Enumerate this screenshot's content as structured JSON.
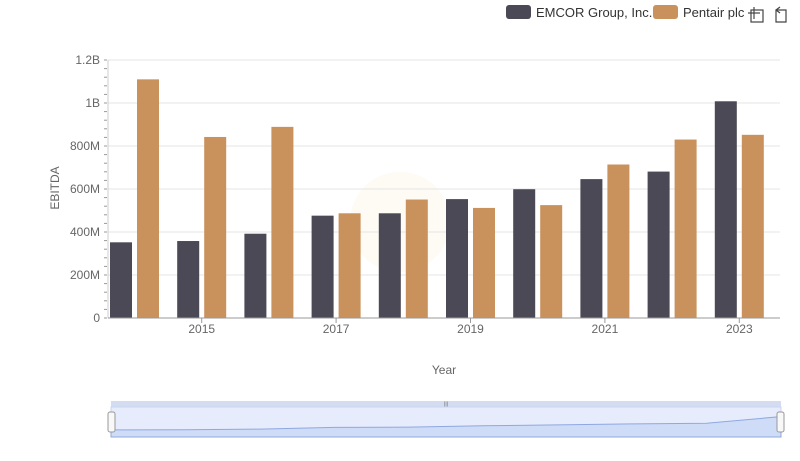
{
  "chart_data": {
    "type": "bar",
    "title": "",
    "xlabel": "Year",
    "ylabel": "EBITDA",
    "x": [
      2014,
      2015,
      2016,
      2017,
      2018,
      2019,
      2020,
      2021,
      2022,
      2023
    ],
    "x_tick_labels": [
      "2015",
      "2017",
      "2019",
      "2021",
      "2023"
    ],
    "y_tick_labels": [
      "0",
      "200M",
      "400M",
      "600M",
      "800M",
      "1B",
      "1.2B"
    ],
    "ylim": [
      0,
      1200000000
    ],
    "grid": true,
    "legend_position": "top-right",
    "series": [
      {
        "name": "EMCOR Group, Inc.",
        "color": "#4a4955",
        "values": [
          352000000,
          358000000,
          392000000,
          476000000,
          487000000,
          553000000,
          599000000,
          646000000,
          681000000,
          1008000000
        ]
      },
      {
        "name": "Pentair plc",
        "color": "#c9915c",
        "values": [
          1110000000,
          842000000,
          889000000,
          487000000,
          551000000,
          512000000,
          525000000,
          714000000,
          830000000,
          852000000
        ]
      }
    ]
  },
  "toolbar": {
    "zoom_icon": "zoom-crosshair-icon",
    "reset_icon": "reset-zoom-icon"
  }
}
